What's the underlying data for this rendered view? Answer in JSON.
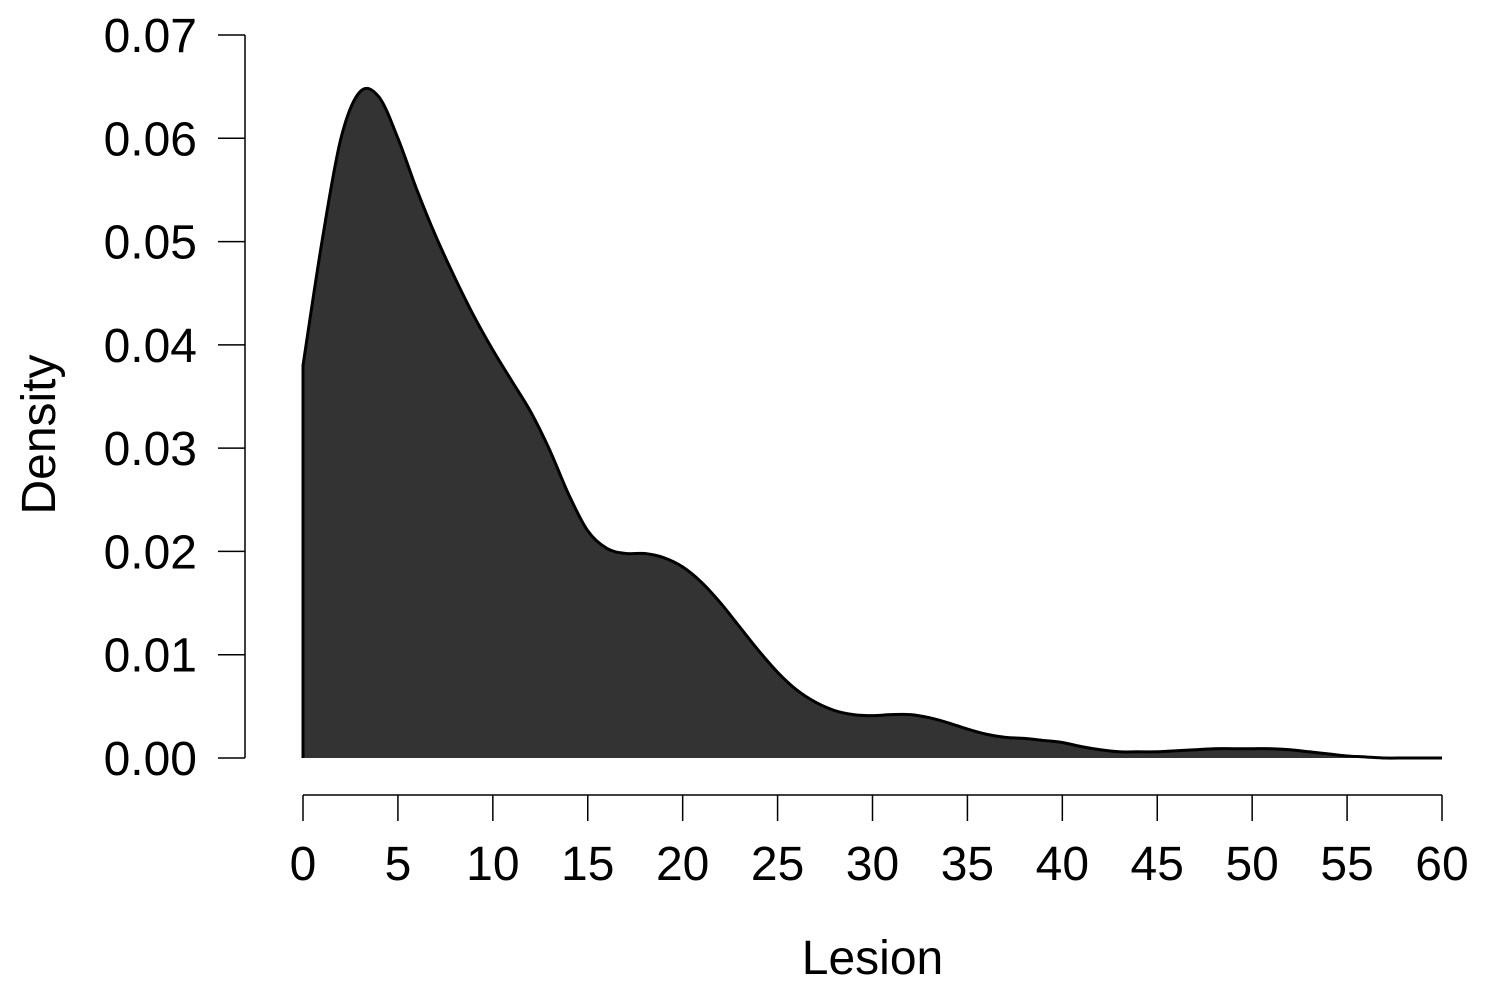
{
  "chart_data": {
    "type": "area",
    "xlabel": "Lesion",
    "ylabel": "Density",
    "xlim": [
      0,
      60
    ],
    "ylim": [
      0,
      0.07
    ],
    "x_ticks": [
      0,
      5,
      10,
      15,
      20,
      25,
      30,
      35,
      40,
      45,
      50,
      55,
      60
    ],
    "x_tick_labels": [
      "0",
      "5",
      "10",
      "15",
      "20",
      "25",
      "30",
      "35",
      "40",
      "45",
      "50",
      "55",
      "60"
    ],
    "y_ticks": [
      0,
      0.01,
      0.02,
      0.03,
      0.04,
      0.05,
      0.06,
      0.07
    ],
    "y_tick_labels": [
      "0.00",
      "0.01",
      "0.02",
      "0.03",
      "0.04",
      "0.05",
      "0.06",
      "0.07"
    ],
    "grid": false,
    "fill_color": "#333333",
    "line_color": "#000000",
    "series": [
      {
        "x": [
          0,
          1,
          2,
          3,
          4,
          5,
          6,
          7,
          8,
          9,
          10,
          11,
          12,
          13,
          14,
          15,
          16,
          17,
          18,
          19,
          20,
          21,
          22,
          23,
          24,
          25,
          26,
          27,
          28,
          29,
          30,
          31,
          32,
          33,
          34,
          35,
          36,
          37,
          38,
          39,
          40,
          41,
          42,
          43,
          44,
          45,
          46,
          47,
          48,
          49,
          50,
          51,
          52,
          53,
          54,
          55,
          56,
          57,
          58,
          59,
          60
        ],
        "y": [
          0.038,
          0.05,
          0.06,
          0.0645,
          0.064,
          0.06,
          0.055,
          0.0505,
          0.0465,
          0.0428,
          0.0395,
          0.0365,
          0.0335,
          0.0298,
          0.0255,
          0.022,
          0.0203,
          0.0198,
          0.0198,
          0.0194,
          0.0185,
          0.017,
          0.015,
          0.0127,
          0.0104,
          0.0083,
          0.0066,
          0.0054,
          0.0046,
          0.0042,
          0.0041,
          0.0042,
          0.0042,
          0.0039,
          0.0034,
          0.0028,
          0.0023,
          0.002,
          0.0019,
          0.0017,
          0.0015,
          0.0011,
          0.0008,
          0.0006,
          0.0006,
          0.0006,
          0.0007,
          0.0008,
          0.0009,
          0.0009,
          0.0009,
          0.0009,
          0.0008,
          0.0006,
          0.0004,
          0.0002,
          0.0001,
          0.0,
          0.0,
          0.0,
          0.0
        ]
      }
    ]
  }
}
